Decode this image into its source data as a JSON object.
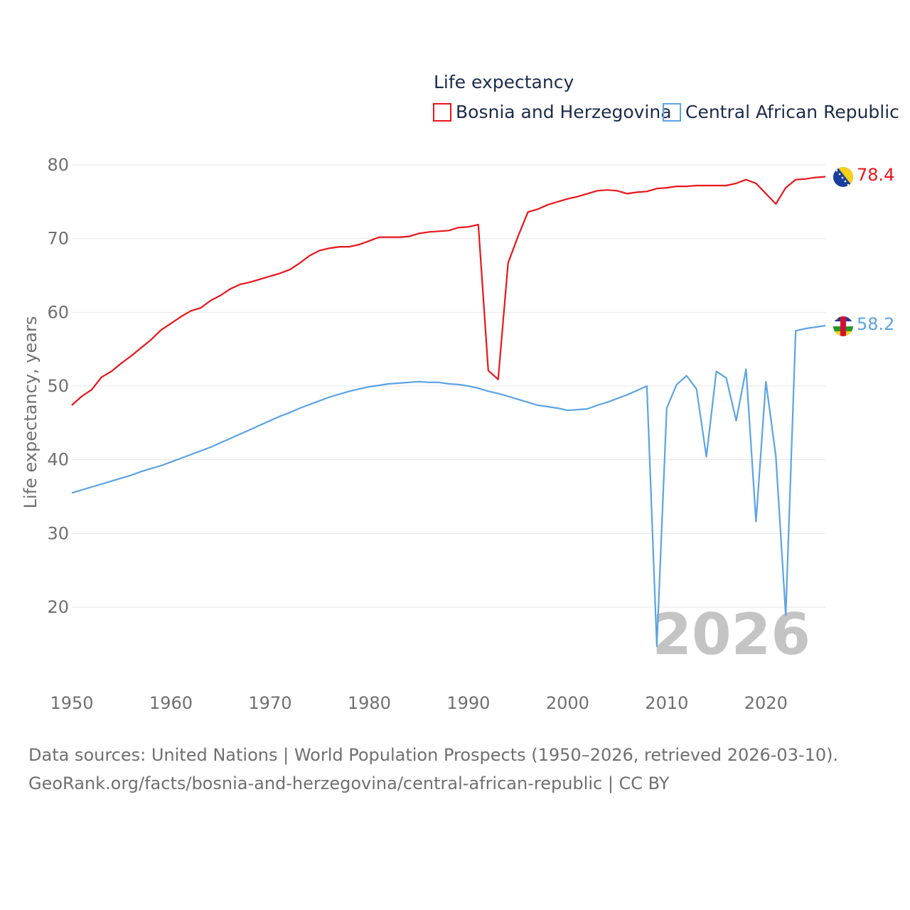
{
  "chart_data": {
    "type": "line",
    "title": "Life expectancy",
    "xlabel": "",
    "ylabel": "Life expectancy, years",
    "xlim": [
      1950,
      2026
    ],
    "ylim": [
      10,
      83
    ],
    "yticks": [
      20,
      30,
      40,
      50,
      60,
      70,
      80
    ],
    "xticks": [
      1950,
      1960,
      1970,
      1980,
      1990,
      2000,
      2010,
      2020
    ],
    "year_label": "2026",
    "series": [
      {
        "name": "Bosnia and Herzegovina",
        "color": "#e8151b",
        "end_label": "78.4",
        "flag": "bosnia-flag-icon",
        "x": [
          1950,
          1951,
          1952,
          1953,
          1954,
          1955,
          1956,
          1957,
          1958,
          1959,
          1960,
          1961,
          1962,
          1963,
          1964,
          1965,
          1966,
          1967,
          1968,
          1969,
          1970,
          1971,
          1972,
          1973,
          1974,
          1975,
          1976,
          1977,
          1978,
          1979,
          1980,
          1981,
          1982,
          1983,
          1984,
          1985,
          1986,
          1987,
          1988,
          1989,
          1990,
          1991,
          1992,
          1993,
          1994,
          1995,
          1996,
          1997,
          1998,
          1999,
          2000,
          2001,
          2002,
          2003,
          2004,
          2005,
          2006,
          2007,
          2008,
          2009,
          2010,
          2011,
          2012,
          2013,
          2014,
          2015,
          2016,
          2017,
          2018,
          2019,
          2020,
          2021,
          2022,
          2023,
          2024,
          2025,
          2026
        ],
        "values": [
          47.4,
          48.6,
          49.5,
          51.2,
          52.0,
          53.1,
          54.1,
          55.2,
          56.3,
          57.6,
          58.5,
          59.4,
          60.2,
          60.6,
          61.6,
          62.3,
          63.2,
          63.8,
          64.1,
          64.5,
          64.9,
          65.3,
          65.8,
          66.7,
          67.7,
          68.4,
          68.7,
          68.9,
          68.9,
          69.2,
          69.7,
          70.2,
          70.2,
          70.2,
          70.3,
          70.7,
          70.9,
          71.0,
          71.1,
          71.5,
          71.6,
          71.9,
          52.1,
          50.9,
          66.7,
          70.3,
          73.6,
          74.0,
          74.6,
          75.0,
          75.4,
          75.7,
          76.1,
          76.5,
          76.6,
          76.5,
          76.1,
          76.3,
          76.4,
          76.8,
          76.9,
          77.1,
          77.1,
          77.2,
          77.2,
          77.2,
          77.2,
          77.5,
          78.0,
          77.5,
          76.1,
          74.7,
          76.9,
          78.0,
          78.1,
          78.3,
          78.4
        ]
      },
      {
        "name": "Central African Republic",
        "color": "#5ba3e4",
        "end_label": "58.2",
        "flag": "car-flag-icon",
        "x": [
          1950,
          1951,
          1952,
          1953,
          1954,
          1955,
          1956,
          1957,
          1958,
          1959,
          1960,
          1961,
          1962,
          1963,
          1964,
          1965,
          1966,
          1967,
          1968,
          1969,
          1970,
          1971,
          1972,
          1973,
          1974,
          1975,
          1976,
          1977,
          1978,
          1979,
          1980,
          1981,
          1982,
          1983,
          1984,
          1985,
          1986,
          1987,
          1988,
          1989,
          1990,
          1991,
          1992,
          1993,
          1994,
          1995,
          1996,
          1997,
          1998,
          1999,
          2000,
          2001,
          2002,
          2003,
          2004,
          2005,
          2006,
          2007,
          2008,
          2009,
          2010,
          2011,
          2012,
          2013,
          2014,
          2015,
          2016,
          2017,
          2018,
          2019,
          2020,
          2021,
          2022,
          2023,
          2024,
          2025,
          2026
        ],
        "values": [
          35.5,
          35.9,
          36.3,
          36.7,
          37.1,
          37.5,
          37.9,
          38.4,
          38.8,
          39.2,
          39.7,
          40.2,
          40.7,
          41.2,
          41.7,
          42.3,
          42.9,
          43.5,
          44.1,
          44.7,
          45.3,
          45.9,
          46.4,
          47.0,
          47.5,
          48.0,
          48.5,
          48.9,
          49.3,
          49.6,
          49.9,
          50.1,
          50.3,
          50.4,
          50.5,
          50.6,
          50.5,
          50.5,
          50.3,
          50.2,
          50.0,
          49.7,
          49.3,
          49.0,
          48.6,
          48.2,
          47.8,
          47.4,
          47.2,
          47.0,
          46.7,
          46.8,
          46.9,
          47.4,
          47.8,
          48.3,
          48.8,
          49.4,
          50.0,
          14.7,
          47.0,
          50.2,
          51.4,
          49.6,
          40.4,
          52.0,
          51.1,
          45.3,
          52.3,
          31.6,
          50.6,
          40.5,
          18.9,
          57.5,
          57.8,
          58.0,
          58.2
        ]
      }
    ]
  },
  "source": {
    "line1": "Data sources: United Nations | World Population Prospects (1950–2026, retrieved 2026-03-10).",
    "line2": "GeoRank.org/facts/bosnia-and-herzegovina/central-african-republic | CC BY"
  }
}
